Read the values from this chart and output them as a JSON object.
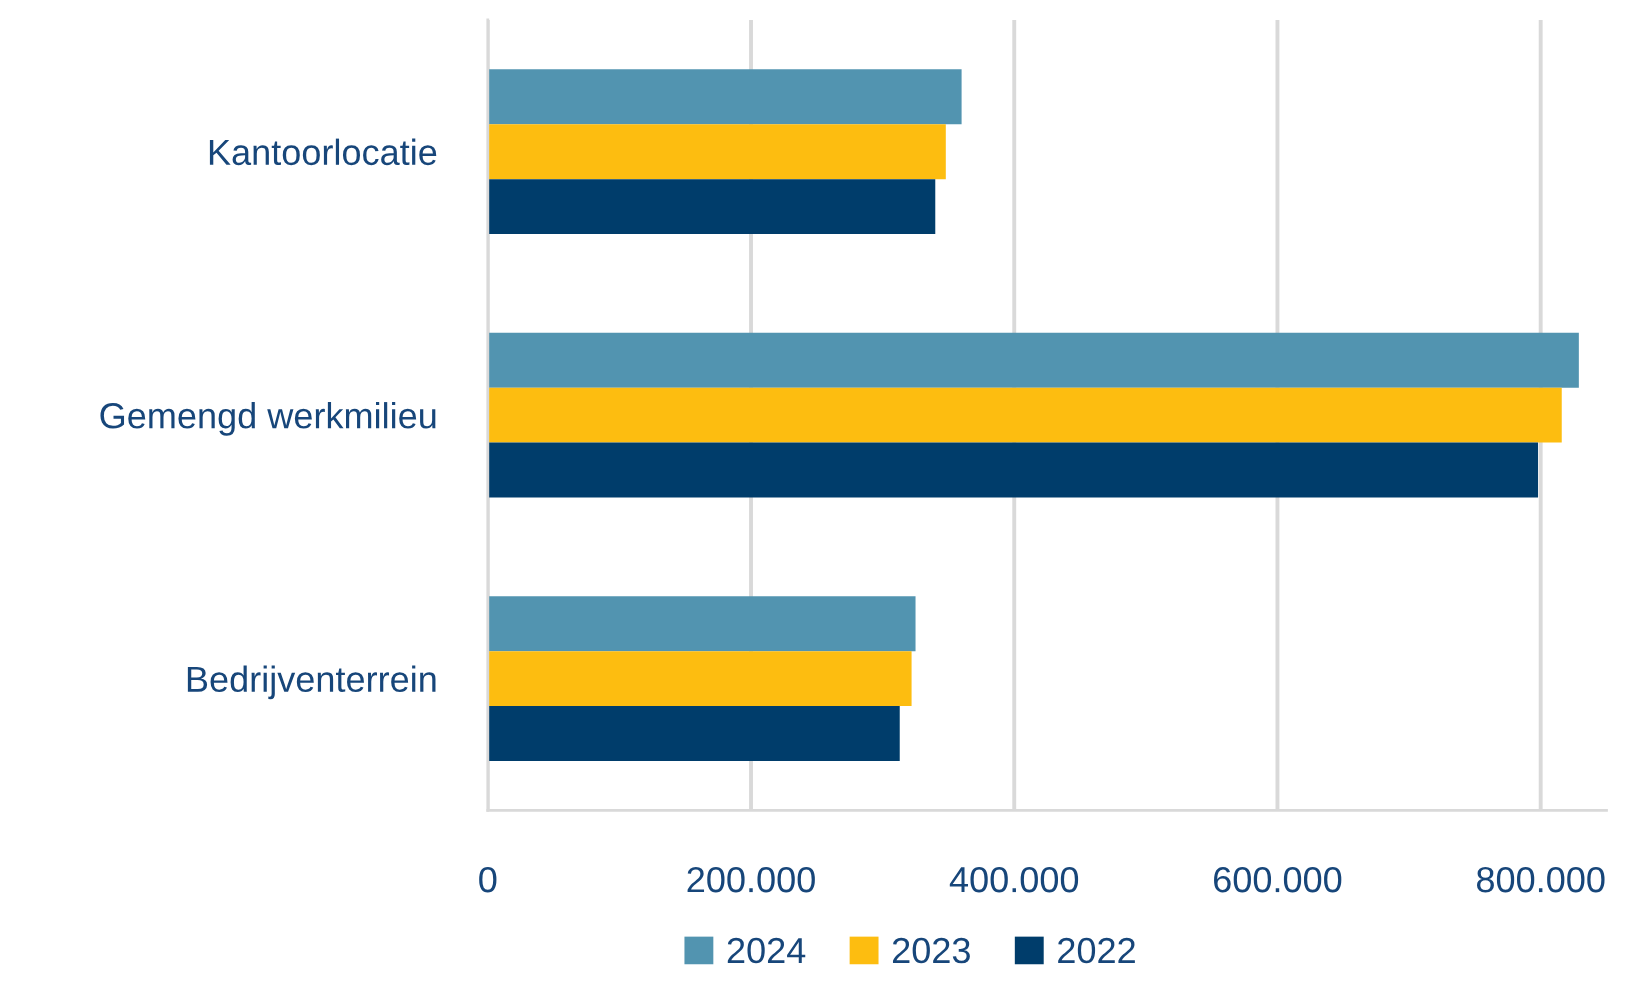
{
  "chart_data": {
    "type": "bar",
    "orientation": "horizontal",
    "categories": [
      "Kantoorlocatie",
      "Gemengd werkmilieu",
      "Bedrijventerrein"
    ],
    "series": [
      {
        "name": "2024",
        "color": "#5294b0",
        "values": [
          360000,
          829000,
          325000
        ]
      },
      {
        "name": "2023",
        "color": "#fdbd10",
        "values": [
          348000,
          816000,
          322000
        ]
      },
      {
        "name": "2022",
        "color": "#003d6b",
        "values": [
          340000,
          798000,
          313000
        ]
      }
    ],
    "xlim": [
      0,
      850000
    ],
    "xticks": [
      0,
      {
        "value": 200000,
        "label": "200.000"
      },
      {
        "value": 400000,
        "label": "400.000"
      },
      {
        "value": 600000,
        "label": "600.000"
      },
      {
        "value": 800000,
        "label": "800.000"
      }
    ],
    "grid": "x",
    "legend": "bottom"
  }
}
